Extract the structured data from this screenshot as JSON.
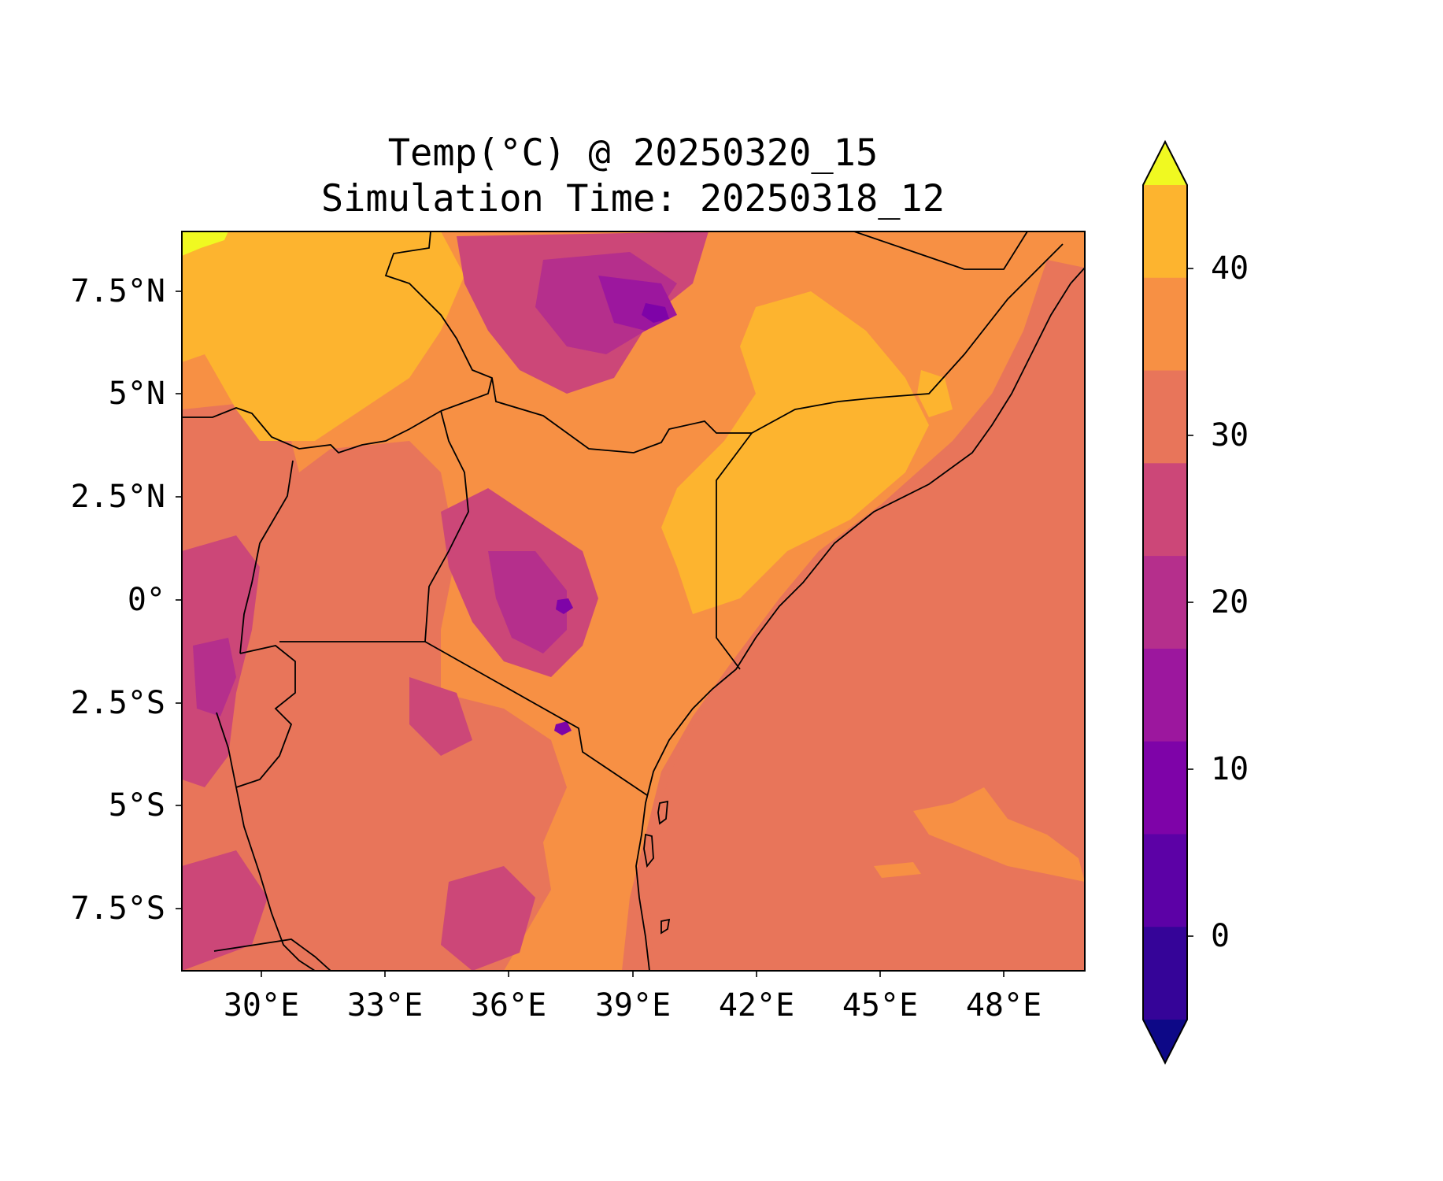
{
  "title": {
    "line1": "Temp(°C) @ 20250320_15",
    "line2": "Simulation Time: 20250318_12"
  },
  "map": {
    "region": "East Africa",
    "lon_range": [
      28.0,
      50.0
    ],
    "lat_range": [
      -9.0,
      9.0
    ],
    "x_ticks": [
      "30°E",
      "33°E",
      "36°E",
      "39°E",
      "42°E",
      "45°E",
      "48°E"
    ],
    "y_ticks": [
      "7.5°N",
      "5°N",
      "2.5°N",
      "0°",
      "2.5°S",
      "5°S",
      "7.5°S"
    ],
    "background_level_color": "#e8755a"
  },
  "colorbar": {
    "ticks": [
      "40",
      "30",
      "20",
      "10",
      "0"
    ],
    "levels": [
      -5,
      0,
      5,
      10,
      15,
      20,
      25,
      30,
      35,
      40,
      45
    ],
    "colors": [
      "#0d0887",
      "#350498",
      "#5c01a6",
      "#7e03a8",
      "#9c179e",
      "#b52f8c",
      "#cc4778",
      "#e8755a",
      "#f79044",
      "#fdb42f",
      "#f0f921"
    ],
    "extend": "both"
  }
}
